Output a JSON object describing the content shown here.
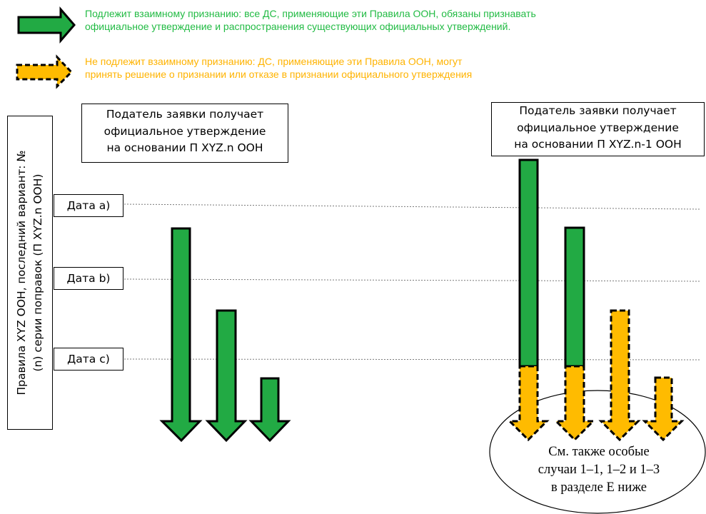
{
  "legend": {
    "mutual": {
      "line1": "Подлежит взаимному признанию: все ДС, применяющие эти Правила ООН, обязаны признавать",
      "line2": "официальное утверждение и распространения существующих официальных утверждений.",
      "color": "#22bb44"
    },
    "non_mutual": {
      "line1": "Не подлежит взаимному признанию: ДС, применяющие эти Правила ООН, могут",
      "line2": "принять решение о признании или отказе в признании официального утверждения",
      "color": "#ffb300"
    }
  },
  "left_box": {
    "line1": "Податель заявки получает",
    "line2": "официальное утверждение",
    "line3": "на основании П XYZ.n ООН"
  },
  "right_box": {
    "line1": "Податель заявки получает",
    "line2": "официальное утверждение",
    "line3": "на основании П XYZ.n-1 ООН"
  },
  "vertical_label": {
    "line1": "Правила XYZ ООН, последний вариант: №",
    "line2": "(n) серии поправок (П XYZ.n ООН)"
  },
  "dates": {
    "a": "Дата a)",
    "b": "Дата b)",
    "c": "Дата c)"
  },
  "note": {
    "line1": "См. также особые",
    "line2": "случаи 1–1, 1–2 и 1–3",
    "line3": "в разделе E ниже"
  },
  "colors": {
    "green": "#22aa44",
    "orange": "#ffbb00"
  }
}
